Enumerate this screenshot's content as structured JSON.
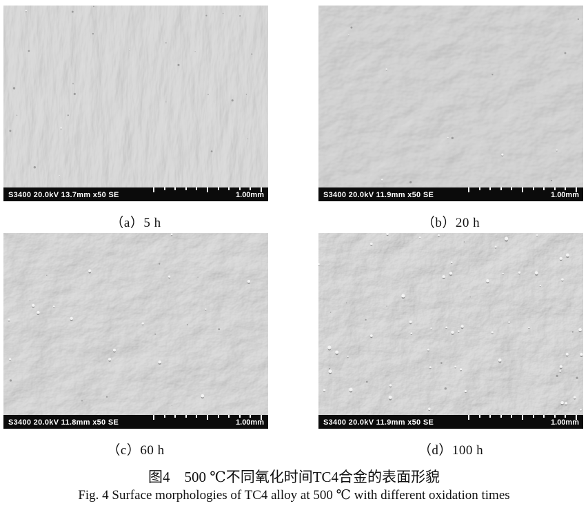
{
  "figure": {
    "number": "图4",
    "caption_zh": "图4　500 ℃不同氧化时间TC4合金的表面形貌",
    "caption_en": "Fig. 4 Surface morphologies of TC4 alloy at 500 ℃ with different oxidation times",
    "panels": [
      {
        "id": "a",
        "caption": "（a）5 h",
        "meta": "S3400 20.0kV 13.7mm x50 SE",
        "scale": "1.00mm"
      },
      {
        "id": "b",
        "caption": "（b）20 h",
        "meta": "S3400 20.0kV 11.9mm x50 SE",
        "scale": "1.00mm"
      },
      {
        "id": "c",
        "caption": "（c）60 h",
        "meta": "S3400 20.0kV 11.8mm x50 SE",
        "scale": "1.00mm"
      },
      {
        "id": "d",
        "caption": "（d）100 h",
        "meta": "S3400 20.0kV 11.9mm x50 SE",
        "scale": "1.00mm"
      }
    ]
  },
  "colors": {
    "sem_base_gray": "#ababab",
    "info_bar_bg": "#0b0b0b",
    "info_bar_text": "#ffffff",
    "caption_text": "#111111",
    "page_bg": "#ffffff"
  }
}
